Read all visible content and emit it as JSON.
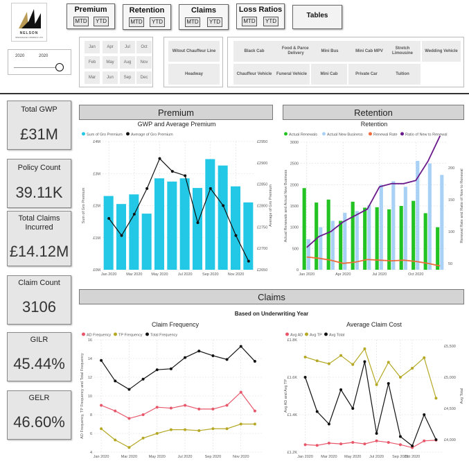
{
  "logo": {
    "brand": "NELSON",
    "tagline": "INSURANCE COMPANY LTD"
  },
  "nav": [
    {
      "title": "Premium",
      "left": "MTD",
      "right": "YTD"
    },
    {
      "title": "Retention",
      "left": "MTD",
      "right": "YTD"
    },
    {
      "title": "Claims",
      "left": "MTD",
      "right": "YTD"
    },
    {
      "title": "Loss Ratios",
      "left": "MTD",
      "right": "YTD"
    }
  ],
  "tables_button": "Tables",
  "date_slicer": {
    "from": "2020",
    "to": "2020"
  },
  "months": [
    "Jan",
    "Apr",
    "Jul",
    "Oct",
    "Feb",
    "May",
    "Aug",
    "Nov",
    "Mar",
    "Jun",
    "Sep",
    "Dec"
  ],
  "cover_types": [
    "Witout Chauffeur Line",
    "Headway"
  ],
  "vehicles": [
    "Black Cab",
    "Food & Parcel Delivery",
    "Mini Bus",
    "Mini Cab MPV",
    "Stretch Limousine",
    "Wedding Vehicle",
    "Chauffeur Vehicle",
    "Funeral Vehicle",
    "Mini Cab",
    "Private Car",
    "Tuition"
  ],
  "kpis": [
    {
      "label": "Total GWP",
      "value": "£31M"
    },
    {
      "label": "Policy Count",
      "value": "39.11K"
    },
    {
      "label": "Total Claims Incurred",
      "value": "£14.12M"
    },
    {
      "label": "Claim Count",
      "value": "3106"
    },
    {
      "label": "GILR",
      "value": "45.44%"
    },
    {
      "label": "GELR",
      "value": "46.60%"
    }
  ],
  "sections": {
    "premium": "Premium",
    "retention": "Retention",
    "claims": "Claims",
    "claims_sub": "Based on Underwriting Year"
  },
  "colors": {
    "cyan": "#22c8e5",
    "green": "#22c322",
    "lightblue": "#a9d1f5",
    "orange": "#ef6b3a",
    "purple": "#6a1a8a",
    "red": "#e8566a",
    "olive": "#b5a825",
    "black": "#111111"
  },
  "chart_data": [
    {
      "type": "bar+line",
      "title": "GWP and Average Premium",
      "legend": [
        "Sum of Gro Premium",
        "Average of Gro Premium"
      ],
      "categories": [
        "Jan 2020",
        "Feb 2020",
        "Mar 2020",
        "Apr 2020",
        "May 2020",
        "Jun 2020",
        "Jul 2020",
        "Aug 2020",
        "Sep 2020",
        "Oct 2020",
        "Nov 2020",
        "Dec 2020"
      ],
      "x_ticks": [
        "Jan 2020",
        "Mar 2020",
        "May 2020",
        "Jul 2020",
        "Sep 2020",
        "Nov 2020"
      ],
      "series": [
        {
          "name": "Sum of Gro Premium",
          "axis": "left",
          "values": [
            2.3,
            2.05,
            2.35,
            1.75,
            2.85,
            2.75,
            2.85,
            2.55,
            3.45,
            3.25,
            2.6,
            2.1
          ]
        },
        {
          "name": "Average of Gro Premium",
          "axis": "right",
          "values": [
            2770,
            2730,
            2780,
            2840,
            2910,
            2880,
            2870,
            2760,
            2840,
            2800,
            2730,
            2670
          ]
        }
      ],
      "ylabel": "Sum of Gro Premium",
      "y2label": "Average of Gro Premium",
      "ylim": [
        0,
        4
      ],
      "y_ticks": [
        "£0M",
        "£1M",
        "£2M",
        "£3M",
        "£4M"
      ],
      "y2lim": [
        2650,
        2950
      ],
      "y2_ticks": [
        "£2650",
        "£2700",
        "£2750",
        "£2800",
        "£2850",
        "£2900",
        "£2950"
      ]
    },
    {
      "type": "bar+line",
      "title": "Retention",
      "legend": [
        "Actual Renewals",
        "Actual New Business",
        "Renewal Rate",
        "Ratio of New to Renewal"
      ],
      "categories": [
        "Jan 2020",
        "Feb 2020",
        "Mar 2020",
        "Apr 2020",
        "May 2020",
        "Jun 2020",
        "Jul 2020",
        "Aug 2020",
        "Sep 2020",
        "Oct 2020",
        "Nov 2020",
        "Dec 2020"
      ],
      "x_ticks": [
        "Jan 2020",
        "Apr 2020",
        "Jul 2020",
        "Oct 2020"
      ],
      "series": [
        {
          "name": "Actual Renewals",
          "axis": "left",
          "values": [
            1920,
            1580,
            1650,
            1150,
            1600,
            1460,
            1470,
            1420,
            1500,
            1620,
            1330,
            1000
          ]
        },
        {
          "name": "Actual New Business",
          "axis": "left",
          "values": [
            720,
            1000,
            1150,
            1340,
            1380,
            1520,
            2000,
            2080,
            1950,
            2560,
            2500,
            2230
          ]
        },
        {
          "name": "Renewal Rate",
          "axis": "right",
          "values": [
            60,
            58,
            55,
            50,
            52,
            56,
            55,
            54,
            55,
            53,
            50,
            46
          ]
        },
        {
          "name": "Ratio of New to Renewal",
          "axis": "right",
          "values": [
            75,
            92,
            100,
            115,
            125,
            135,
            170,
            175,
            175,
            180,
            210,
            250
          ]
        }
      ],
      "ylabel": "Actual Renewals and Actual New Business",
      "y2label": "Renewal Rate and Ratio of New to Renewal",
      "ylim": [
        0,
        3000
      ],
      "y_ticks": [
        "0",
        "500",
        "1000",
        "1500",
        "2000",
        "2500",
        "3000"
      ],
      "y2lim": [
        40,
        240
      ],
      "y2_ticks": [
        "50",
        "100",
        "150",
        "200"
      ]
    },
    {
      "type": "line",
      "title": "Claim Frequency",
      "legend": [
        "AD Frequency",
        "TP Frequency",
        "Total Frequency"
      ],
      "categories": [
        "Jan 2020",
        "Feb 2020",
        "Mar 2020",
        "Apr 2020",
        "May 2020",
        "Jun 2020",
        "Jul 2020",
        "Aug 2020",
        "Sep 2020",
        "Oct 2020",
        "Nov 2020",
        "Dec 2020"
      ],
      "x_ticks": [
        "Jan 2020",
        "Mar 2020",
        "May 2020",
        "Jul 2020",
        "Sep 2020",
        "Nov 2020"
      ],
      "series": [
        {
          "name": "AD Frequency",
          "values": [
            9.0,
            8.4,
            7.6,
            8.0,
            8.8,
            8.7,
            9.0,
            8.6,
            8.6,
            9.0,
            10.4,
            8.4
          ]
        },
        {
          "name": "TP Frequency",
          "values": [
            6.5,
            5.3,
            4.5,
            5.5,
            6.0,
            6.4,
            6.4,
            6.3,
            6.5,
            6.5,
            7.0,
            7.0
          ]
        },
        {
          "name": "Total Frequency",
          "values": [
            13.8,
            11.6,
            10.7,
            11.8,
            12.8,
            12.9,
            14.1,
            14.8,
            14.3,
            13.9,
            15.3,
            13.7
          ]
        }
      ],
      "ylabel": "AD Frequency, TP Frequency and Total Frequency",
      "ylim": [
        4,
        16
      ],
      "y_ticks": [
        "4",
        "6",
        "8",
        "10",
        "12",
        "14",
        "16"
      ]
    },
    {
      "type": "line",
      "title": "Average Claim Cost",
      "legend": [
        "Avg AD",
        "Avg TP",
        "Avg Total"
      ],
      "categories": [
        "Jan 2020",
        "Feb 2020",
        "Mar 2020",
        "Apr 2020",
        "May 2020",
        "Jun 2020",
        "Jul 2020",
        "Aug 2020",
        "Sep 2020",
        "Oct 2020",
        "Nov 2020",
        "Dec 2020"
      ],
      "x_ticks": [
        "Jan 2020",
        "Mar 2020",
        "May 2020",
        "Jul 2020",
        "Sep 2020",
        "Oct 2020"
      ],
      "series": [
        {
          "name": "Avg AD",
          "axis": "left",
          "values": [
            1200,
            1195,
            1210,
            1205,
            1215,
            1205,
            1225,
            1215,
            1200,
            1180,
            1225,
            1230
          ]
        },
        {
          "name": "Avg TP",
          "axis": "left",
          "values": [
            1785,
            1760,
            1740,
            1795,
            1735,
            1840,
            1600,
            1750,
            1650,
            1710,
            1780,
            1510
          ]
        },
        {
          "name": "Avg Total",
          "axis": "right",
          "values": [
            5000,
            4450,
            4250,
            4800,
            4500,
            5250,
            4100,
            4900,
            4050,
            3900,
            4400,
            4000
          ]
        }
      ],
      "ylabel": "Avg AD and Avg TP",
      "y2label": "Avg Total",
      "ylim": [
        1150,
        1900
      ],
      "y_ticks": [
        "£1.2K",
        "£1.4K",
        "£1.6K",
        "£1.8K"
      ],
      "y2lim": [
        3800,
        5600
      ],
      "y2_ticks": [
        "£4,000",
        "£4,500",
        "£5,000",
        "£5,500"
      ]
    }
  ]
}
